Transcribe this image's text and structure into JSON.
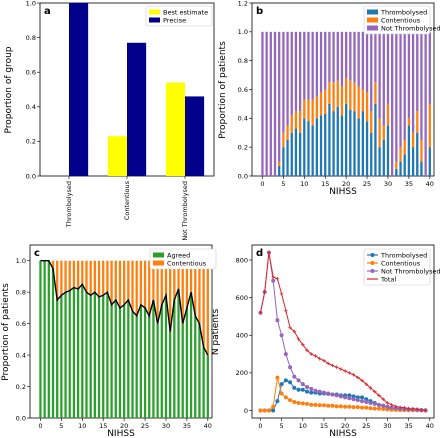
{
  "colors": {
    "yellow": "#ffff00",
    "navy": "#00008b",
    "blue": "#1f77b4",
    "orange": "#ff7f0e",
    "purple": "#9467bd",
    "green": "#2ca02c",
    "red": "#d62728"
  },
  "chart_data": [
    {
      "panel": "a",
      "type": "bar",
      "categories": [
        "Thrombolysed",
        "Contentious",
        "Not Thrombolysed"
      ],
      "series": [
        {
          "name": "Best estimate",
          "values": [
            0.0,
            0.23,
            0.54
          ]
        },
        {
          "name": "Precise",
          "values": [
            1.0,
            0.77,
            0.46
          ]
        }
      ],
      "ylabel": "Proportion of group",
      "ylim": [
        0,
        1.0
      ],
      "yticks": [
        "0.0",
        "0.2",
        "0.4",
        "0.6",
        "0.8",
        "1.0"
      ],
      "legend": "top-right"
    },
    {
      "panel": "b",
      "type": "bar",
      "stacked": true,
      "x": [
        0,
        1,
        2,
        3,
        4,
        5,
        6,
        7,
        8,
        9,
        10,
        11,
        12,
        13,
        14,
        15,
        16,
        17,
        18,
        19,
        20,
        21,
        22,
        23,
        24,
        25,
        26,
        27,
        28,
        29,
        30,
        31,
        32,
        33,
        34,
        35,
        36,
        37,
        38,
        39,
        40
      ],
      "series": [
        {
          "name": "Thrombolysed",
          "values": [
            0,
            0,
            0,
            0,
            0.07,
            0.2,
            0.25,
            0.3,
            0.33,
            0.3,
            0.4,
            0.38,
            0.35,
            0.4,
            0.42,
            0.43,
            0.5,
            0.45,
            0.48,
            0.42,
            0.5,
            0.46,
            0.45,
            0.4,
            0.45,
            0.38,
            0.3,
            0.5,
            0.2,
            0.25,
            0.35,
            0.0,
            0.05,
            0.1,
            0.15,
            0.35,
            0.2,
            0.3,
            0.1,
            0.0,
            0.2
          ]
        },
        {
          "name": "Contentious",
          "values": [
            0,
            0,
            0,
            0,
            0.03,
            0.1,
            0.1,
            0.12,
            0.12,
            0.15,
            0.13,
            0.15,
            0.18,
            0.15,
            0.16,
            0.17,
            0.15,
            0.2,
            0.18,
            0.2,
            0.18,
            0.2,
            0.2,
            0.22,
            0.15,
            0.2,
            0.15,
            0.15,
            0.2,
            0.1,
            0.15,
            0.0,
            0.05,
            0.1,
            0.1,
            0.05,
            0.1,
            0.15,
            0.15,
            0.0,
            0.3
          ]
        },
        {
          "name": "Not Thrombolysed",
          "values": [
            1,
            1,
            1,
            1,
            0.9,
            0.7,
            0.65,
            0.58,
            0.55,
            0.55,
            0.47,
            0.47,
            0.47,
            0.45,
            0.42,
            0.4,
            0.35,
            0.35,
            0.34,
            0.38,
            0.32,
            0.34,
            0.35,
            0.38,
            0.4,
            0.42,
            0.55,
            0.35,
            0.6,
            0.65,
            0.5,
            1.0,
            0.9,
            0.8,
            0.75,
            0.6,
            0.7,
            0.55,
            0.75,
            1.0,
            0.5
          ]
        }
      ],
      "xlabel": "NIHSS",
      "ylabel": "Proportion of patients",
      "xlim": [
        -2.5,
        41
      ],
      "ylim": [
        0,
        1.2
      ],
      "xticks": [
        0,
        5,
        10,
        15,
        20,
        25,
        30,
        35,
        40
      ],
      "yticks": [
        "0.0",
        "0.2",
        "0.4",
        "0.6",
        "0.8",
        "1.0",
        "1.2"
      ],
      "legend": "top-right"
    },
    {
      "panel": "c",
      "type": "bar",
      "stacked": true,
      "x": [
        0,
        1,
        2,
        3,
        4,
        5,
        6,
        7,
        8,
        9,
        10,
        11,
        12,
        13,
        14,
        15,
        16,
        17,
        18,
        19,
        20,
        21,
        22,
        23,
        24,
        25,
        26,
        27,
        28,
        29,
        30,
        31,
        32,
        33,
        34,
        35,
        36,
        37,
        38,
        39,
        40
      ],
      "series": [
        {
          "name": "Agreed",
          "values": [
            1.0,
            1.0,
            1.0,
            0.95,
            0.75,
            0.78,
            0.8,
            0.81,
            0.83,
            0.82,
            0.85,
            0.8,
            0.78,
            0.8,
            0.77,
            0.78,
            0.8,
            0.72,
            0.75,
            0.7,
            0.72,
            0.75,
            0.68,
            0.65,
            0.72,
            0.7,
            0.65,
            0.75,
            0.6,
            0.72,
            0.78,
            0.55,
            0.75,
            0.82,
            0.6,
            0.7,
            0.8,
            0.65,
            0.6,
            0.45,
            0.4
          ]
        },
        {
          "name": "Contentious",
          "values": [
            0.0,
            0.0,
            0.0,
            0.05,
            0.25,
            0.22,
            0.2,
            0.19,
            0.17,
            0.18,
            0.15,
            0.2,
            0.22,
            0.2,
            0.23,
            0.22,
            0.2,
            0.28,
            0.25,
            0.3,
            0.28,
            0.25,
            0.32,
            0.35,
            0.28,
            0.3,
            0.35,
            0.25,
            0.4,
            0.28,
            0.22,
            0.45,
            0.25,
            0.18,
            0.4,
            0.3,
            0.2,
            0.35,
            0.4,
            0.55,
            0.6
          ]
        }
      ],
      "xlabel": "NIHSS",
      "ylabel": "Proportion of patients",
      "xlim": [
        -2.5,
        41
      ],
      "ylim": [
        0,
        1.1
      ],
      "xticks": [
        0,
        5,
        10,
        15,
        20,
        25,
        30,
        35,
        40
      ],
      "yticks": [
        "0.0",
        "0.2",
        "0.4",
        "0.6",
        "0.8",
        "1.0"
      ],
      "legend": "top-right"
    },
    {
      "panel": "d",
      "type": "line",
      "x": [
        0,
        1,
        2,
        3,
        4,
        5,
        6,
        7,
        8,
        9,
        10,
        11,
        12,
        13,
        14,
        15,
        16,
        17,
        18,
        19,
        20,
        21,
        22,
        23,
        24,
        25,
        26,
        27,
        28,
        29,
        30,
        31,
        32,
        33,
        34,
        35,
        36,
        37,
        38,
        39
      ],
      "series": [
        {
          "name": "Thrombolysed",
          "values": [
            0,
            0,
            0,
            0,
            50,
            140,
            160,
            150,
            120,
            110,
            110,
            100,
            95,
            95,
            90,
            90,
            88,
            85,
            85,
            80,
            80,
            80,
            75,
            70,
            70,
            60,
            50,
            40,
            30,
            25,
            15,
            10,
            8,
            5,
            5,
            3,
            3,
            2,
            1,
            0
          ]
        },
        {
          "name": "Contentious",
          "values": [
            0,
            0,
            0,
            20,
            175,
            90,
            70,
            55,
            45,
            40,
            38,
            35,
            30,
            30,
            28,
            28,
            25,
            25,
            22,
            22,
            20,
            20,
            18,
            18,
            15,
            15,
            12,
            10,
            10,
            8,
            5,
            4,
            3,
            2,
            2,
            1,
            1,
            1,
            0,
            0
          ]
        },
        {
          "name": "Not Thrombolysed",
          "values": [
            520,
            630,
            840,
            690,
            480,
            400,
            300,
            230,
            180,
            160,
            140,
            125,
            115,
            105,
            100,
            95,
            90,
            85,
            80,
            75,
            70,
            65,
            60,
            55,
            50,
            45,
            40,
            35,
            30,
            25,
            20,
            15,
            12,
            10,
            8,
            6,
            5,
            4,
            2,
            1
          ]
        },
        {
          "name": "Total",
          "values": [
            520,
            630,
            840,
            710,
            700,
            620,
            530,
            440,
            420,
            380,
            350,
            320,
            300,
            290,
            275,
            265,
            250,
            240,
            230,
            220,
            210,
            200,
            190,
            175,
            160,
            140,
            120,
            100,
            80,
            60,
            40,
            30,
            22,
            17,
            15,
            10,
            9,
            7,
            3,
            1
          ]
        }
      ],
      "xlabel": "NIHSS",
      "ylabel": "N patients",
      "xlim": [
        -2,
        41
      ],
      "ylim": [
        -40,
        880
      ],
      "xticks": [
        0,
        5,
        10,
        15,
        20,
        25,
        30,
        35,
        40
      ],
      "yticks": [
        0,
        200,
        400,
        600,
        800
      ],
      "legend": "top-right"
    }
  ]
}
